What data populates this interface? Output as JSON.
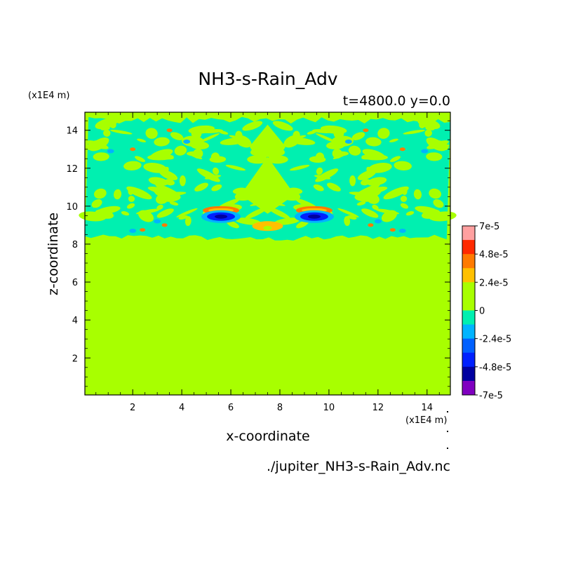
{
  "chart_data": {
    "type": "heatmap",
    "title": "NH3-s-Rain_Adv",
    "subtitle": "t=4800.0 y=0.0",
    "xlabel": "x-coordinate",
    "ylabel": "z-coordinate",
    "x_unit_label": "(x1E4 m)",
    "y_unit_label": "(x1E4 m)",
    "xlim": [
      0.05,
      14.95
    ],
    "ylim": [
      0.05,
      14.95
    ],
    "x_ticks": [
      2,
      4,
      6,
      8,
      10,
      12,
      14
    ],
    "y_ticks": [
      2,
      4,
      6,
      8,
      10,
      12,
      14
    ],
    "x_tick_labels": [
      "2",
      "4",
      "6",
      "8",
      "10",
      "12",
      "14"
    ],
    "y_tick_labels": [
      "2",
      "4",
      "6",
      "8",
      "10",
      "12",
      "14"
    ],
    "source": "./jupiter_NH3-s-Rain_Adv.nc",
    "background_color": "#a8ff00",
    "colorbar": {
      "labels": [
        "7e-5",
        "4.8e-5",
        "2.4e-5",
        "0",
        "-2.4e-5",
        "-4.8e-5",
        "-7e-5"
      ],
      "levels_top_to_bottom": [
        {
          "color": "#ffa0a0",
          "min": 6e-05,
          "max": 7e-05
        },
        {
          "color": "#ff2a00",
          "min": 4.8e-05,
          "max": 6e-05
        },
        {
          "color": "#ff7a00",
          "min": 3.6e-05,
          "max": 4.8e-05
        },
        {
          "color": "#ffc000",
          "min": 2.4e-05,
          "max": 3.6e-05
        },
        {
          "color": "#a8ff00",
          "min": 1.2e-05,
          "max": 2.4e-05
        },
        {
          "color": "#a8ff00",
          "min": 0,
          "max": 1.2e-05
        },
        {
          "color": "#00f0b0",
          "min": -1.2e-05,
          "max": 0
        },
        {
          "color": "#00b4ff",
          "min": -2.4e-05,
          "max": -1.2e-05
        },
        {
          "color": "#0060ff",
          "min": -3.6e-05,
          "max": -2.4e-05
        },
        {
          "color": "#0020ff",
          "min": -4.8e-05,
          "max": -3.6e-05
        },
        {
          "color": "#0000a0",
          "min": -6e-05,
          "max": -4.8e-05
        },
        {
          "color": "#8000c0",
          "min": -7e-05,
          "max": -6e-05
        }
      ]
    },
    "features": [
      {
        "kind": "negative band",
        "x_range": [
          0.05,
          14.95
        ],
        "z_range": [
          8.3,
          14.7
        ],
        "color": "#00f0b0"
      },
      {
        "kind": "strong negative arc",
        "center": [
          5.6,
          9.4
        ],
        "color": "#0020ff"
      },
      {
        "kind": "strong negative arc",
        "center": [
          9.4,
          9.4
        ],
        "color": "#0020ff"
      },
      {
        "kind": "positive patch",
        "center": [
          7.5,
          8.9
        ],
        "color": "#ffc000"
      },
      {
        "kind": "positive arc",
        "center": [
          5.6,
          9.75
        ],
        "color": "#ff7a00"
      },
      {
        "kind": "positive arc",
        "center": [
          9.4,
          9.75
        ],
        "color": "#ff7a00"
      }
    ]
  }
}
